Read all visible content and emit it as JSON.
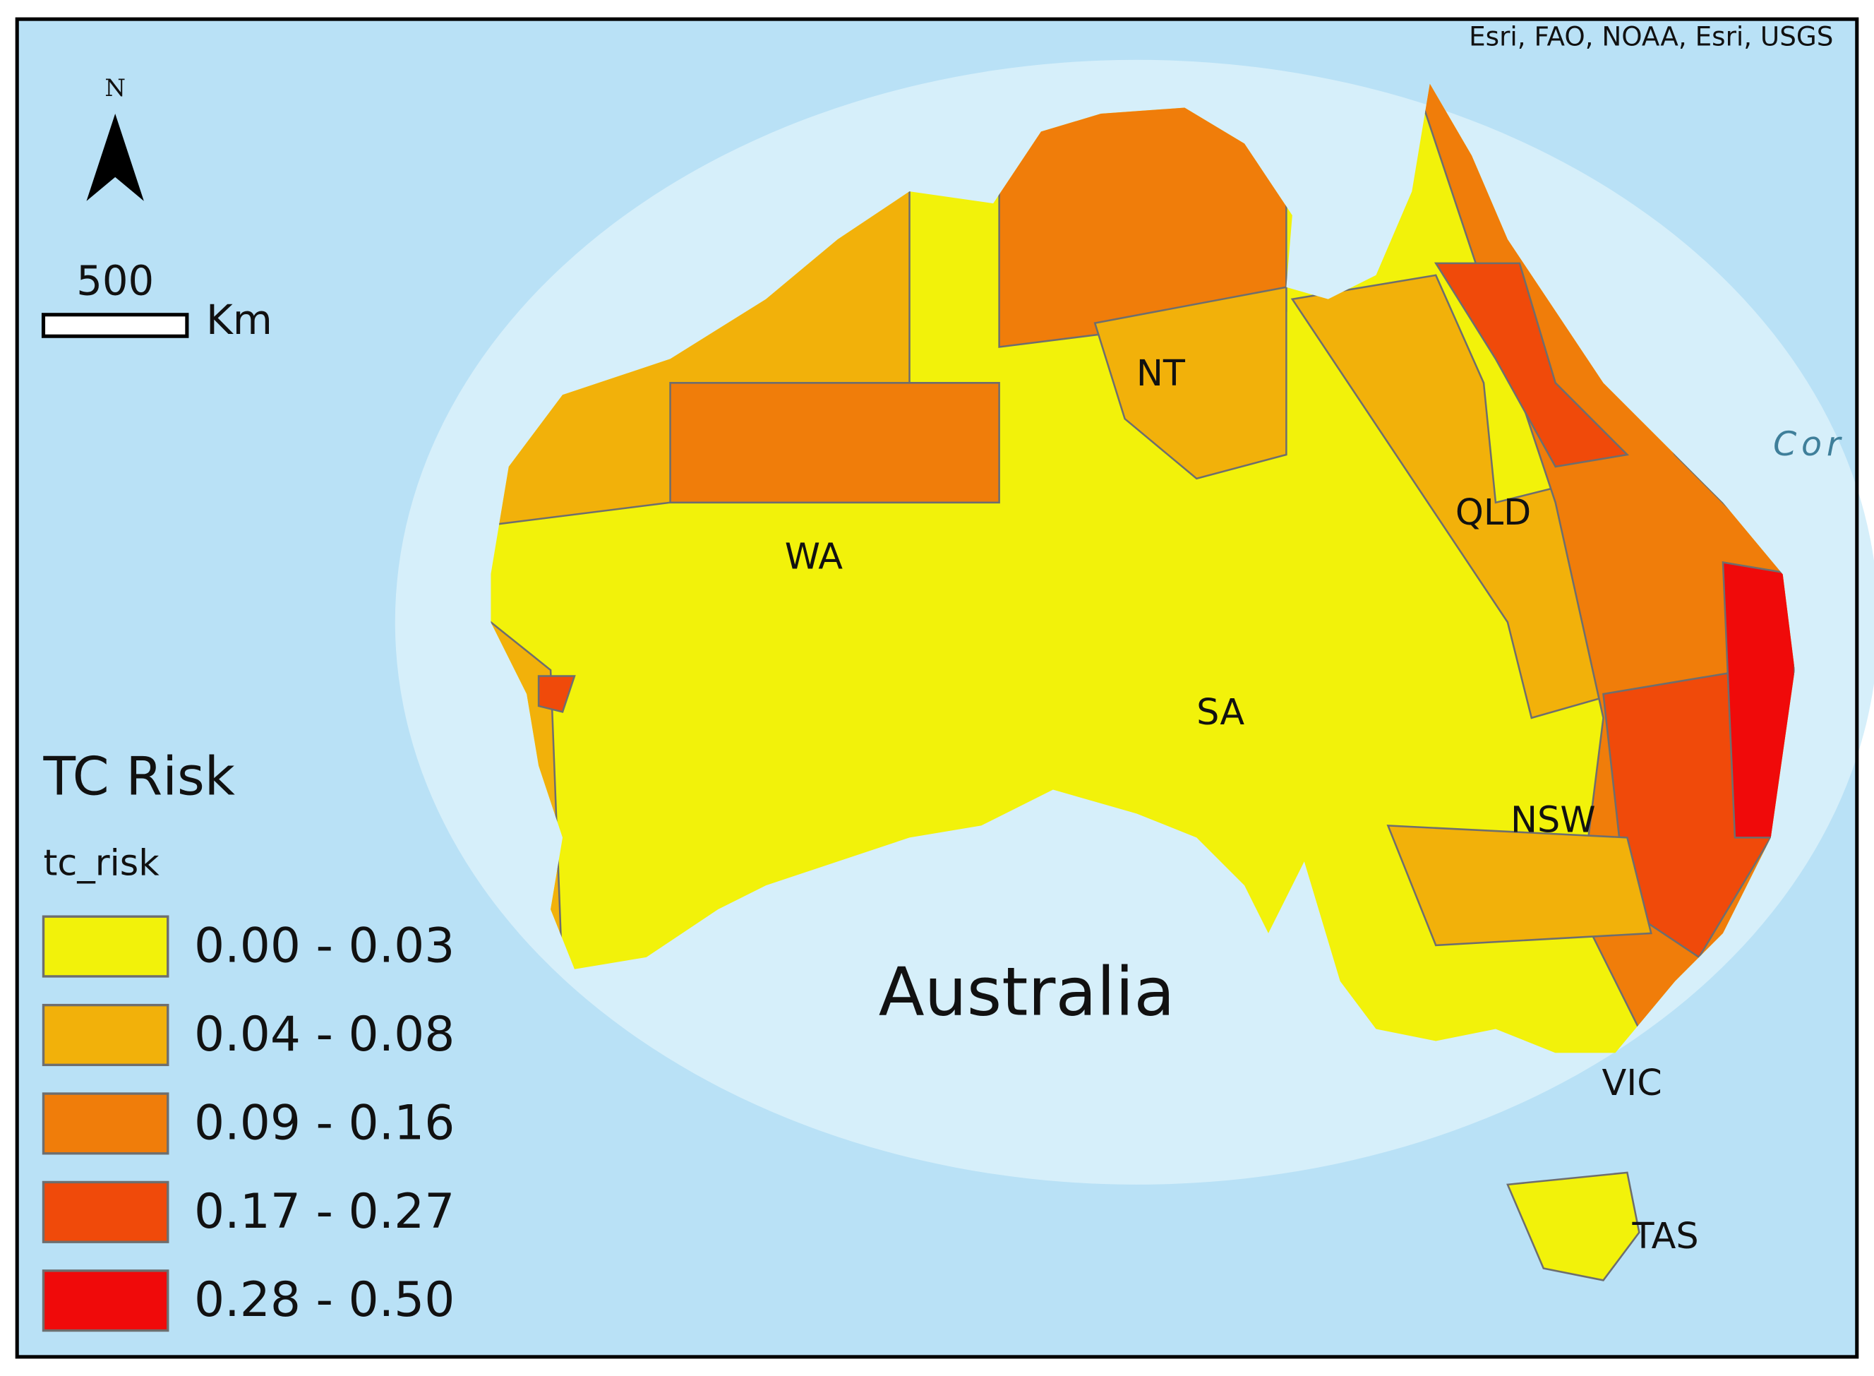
{
  "attribution": "Esri, FAO, NOAA, Esri, USGS",
  "north_arrow": "N",
  "scale_bar": {
    "distance": "500",
    "unit": "Km"
  },
  "legend": {
    "title": "TC Risk",
    "field": "tc_risk",
    "items": [
      {
        "label": "0.00 - 0.03",
        "color": "#f2f20a"
      },
      {
        "label": "0.04 - 0.08",
        "color": "#f2b10a"
      },
      {
        "label": "0.09 - 0.16",
        "color": "#f07d0a"
      },
      {
        "label": "0.17 - 0.27",
        "color": "#f04a0a"
      },
      {
        "label": "0.28 - 0.50",
        "color": "#f00a0a"
      }
    ]
  },
  "map_title": "Australia",
  "region_labels": [
    "WA",
    "NT",
    "SA",
    "QLD",
    "NSW",
    "VIC",
    "TAS"
  ],
  "sea_label": "Cor"
}
